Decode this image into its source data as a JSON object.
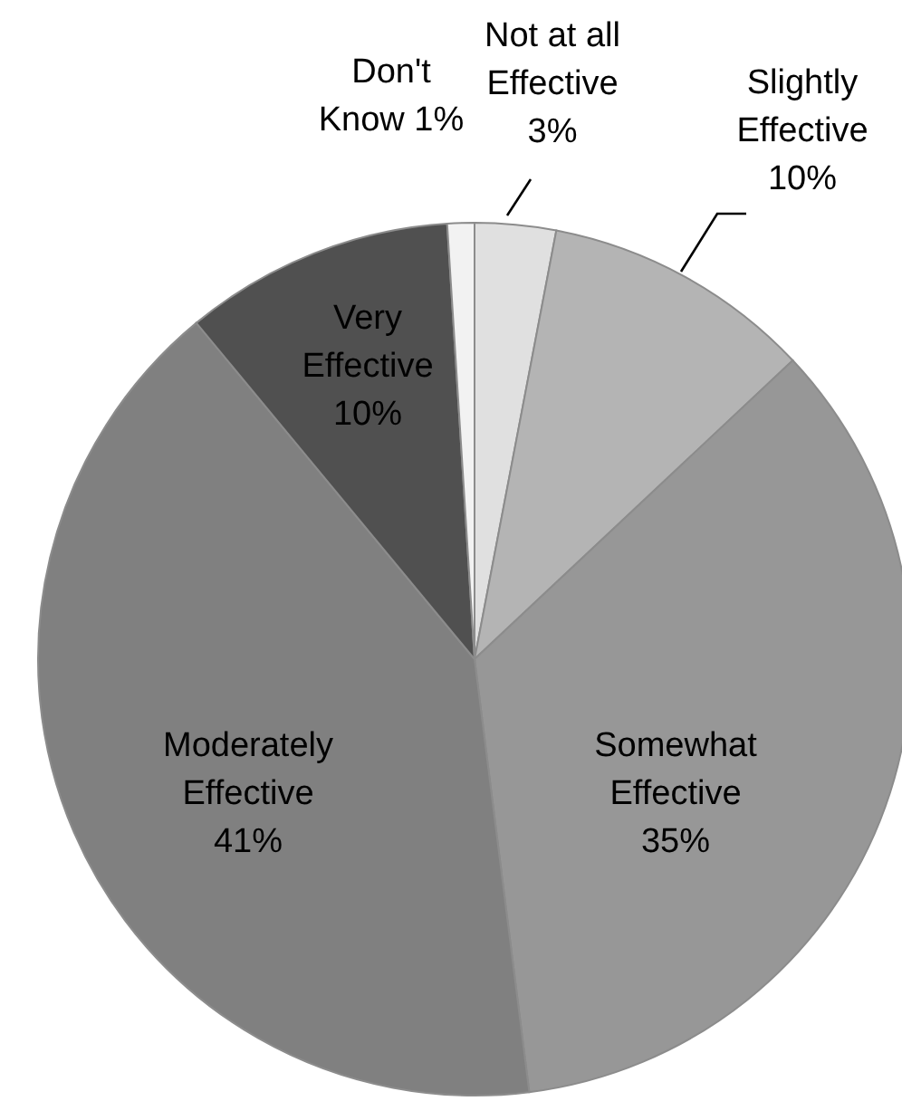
{
  "chart_data": {
    "type": "pie",
    "categories": [
      "Not at all Effective",
      "Slightly Effective",
      "Somewhat Effective",
      "Moderately Effective",
      "Very Effective",
      "Don't Know"
    ],
    "values": [
      3,
      10,
      35,
      41,
      10,
      1
    ],
    "value_labels": [
      "3%",
      "10%",
      "35%",
      "41%",
      "10%",
      "1%"
    ],
    "colors": [
      "#e0e0e0",
      "#b4b4b4",
      "#979797",
      "#808080",
      "#505050",
      "#f2f2f2"
    ]
  }
}
